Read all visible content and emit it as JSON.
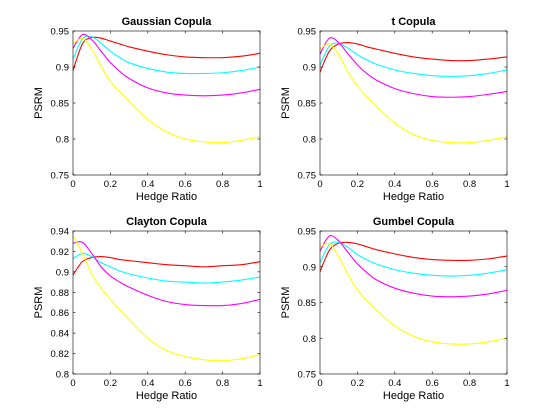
{
  "chart_data": [
    {
      "type": "line",
      "title": "Gaussian Copula",
      "xlabel": "Hedge Ratio",
      "ylabel": "PSRM",
      "xlim": [
        0,
        1
      ],
      "ylim": [
        0.75,
        0.95
      ],
      "xticks": [
        0,
        0.2,
        0.4,
        0.6,
        0.8,
        1
      ],
      "xticklabels": [
        "0",
        "0.2",
        "0.4",
        "0.6",
        "0.8",
        "1"
      ],
      "yticks": [
        0.75,
        0.8,
        0.85,
        0.9,
        0.95
      ],
      "yticklabels": [
        "0.75",
        "0.8",
        "0.85",
        "0.9",
        "0.95"
      ],
      "grid": false,
      "x": [
        0,
        0.05,
        0.1,
        0.15,
        0.2,
        0.25,
        0.3,
        0.4,
        0.5,
        0.6,
        0.7,
        0.8,
        0.9,
        1.0
      ],
      "series": [
        {
          "color": "#ff0000",
          "values": [
            0.895,
            0.932,
            0.941,
            0.94,
            0.936,
            0.932,
            0.928,
            0.922,
            0.917,
            0.914,
            0.913,
            0.913,
            0.915,
            0.919
          ]
        },
        {
          "color": "#00ffff",
          "values": [
            0.911,
            0.939,
            0.942,
            0.933,
            0.922,
            0.913,
            0.906,
            0.898,
            0.893,
            0.891,
            0.891,
            0.892,
            0.895,
            0.9
          ]
        },
        {
          "color": "#ff00ff",
          "values": [
            0.926,
            0.945,
            0.938,
            0.922,
            0.906,
            0.894,
            0.884,
            0.871,
            0.864,
            0.861,
            0.86,
            0.861,
            0.864,
            0.869
          ]
        },
        {
          "color": "#ffff00",
          "values": [
            0.932,
            0.94,
            0.925,
            0.901,
            0.88,
            0.866,
            0.852,
            0.827,
            0.81,
            0.8,
            0.796,
            0.795,
            0.798,
            0.803
          ]
        }
      ]
    },
    {
      "type": "line",
      "title": "t Copula",
      "xlabel": "Hedge Ratio",
      "ylabel": "PSRM",
      "xlim": [
        0,
        1
      ],
      "ylim": [
        0.75,
        0.95
      ],
      "xticks": [
        0,
        0.2,
        0.4,
        0.6,
        0.8,
        1
      ],
      "xticklabels": [
        "0",
        "0.2",
        "0.4",
        "0.6",
        "0.8",
        "1"
      ],
      "yticks": [
        0.75,
        0.8,
        0.85,
        0.9,
        0.95
      ],
      "yticklabels": [
        "0.75",
        "0.8",
        "0.85",
        "0.9",
        "0.95"
      ],
      "grid": false,
      "x": [
        0,
        0.05,
        0.1,
        0.15,
        0.2,
        0.25,
        0.3,
        0.4,
        0.5,
        0.6,
        0.7,
        0.8,
        0.9,
        1.0
      ],
      "series": [
        {
          "color": "#ff0000",
          "values": [
            0.893,
            0.922,
            0.932,
            0.934,
            0.932,
            0.928,
            0.925,
            0.919,
            0.914,
            0.911,
            0.909,
            0.909,
            0.911,
            0.914
          ]
        },
        {
          "color": "#00ffff",
          "values": [
            0.903,
            0.929,
            0.933,
            0.926,
            0.917,
            0.91,
            0.904,
            0.896,
            0.891,
            0.888,
            0.887,
            0.888,
            0.891,
            0.896
          ]
        },
        {
          "color": "#ff00ff",
          "values": [
            0.918,
            0.94,
            0.934,
            0.918,
            0.903,
            0.891,
            0.882,
            0.87,
            0.863,
            0.859,
            0.858,
            0.859,
            0.862,
            0.866
          ]
        },
        {
          "color": "#ffff00",
          "values": [
            0.925,
            0.932,
            0.917,
            0.893,
            0.874,
            0.859,
            0.846,
            0.822,
            0.806,
            0.798,
            0.795,
            0.795,
            0.798,
            0.803
          ]
        }
      ]
    },
    {
      "type": "line",
      "title": "Clayton Copula",
      "xlabel": "Hedge Ratio",
      "ylabel": "PSRM",
      "xlim": [
        0,
        1
      ],
      "ylim": [
        0.8,
        0.94
      ],
      "xticks": [
        0,
        0.2,
        0.4,
        0.6,
        0.8,
        1
      ],
      "xticklabels": [
        "0",
        "0.2",
        "0.4",
        "0.6",
        "0.8",
        "1"
      ],
      "yticks": [
        0.8,
        0.82,
        0.84,
        0.86,
        0.88,
        0.9,
        0.92,
        0.94
      ],
      "yticklabels": [
        "0.8",
        "0.82",
        "0.84",
        "0.86",
        "0.88",
        "0.9",
        "0.92",
        "0.94"
      ],
      "grid": false,
      "x": [
        0,
        0.05,
        0.1,
        0.15,
        0.2,
        0.25,
        0.3,
        0.4,
        0.5,
        0.6,
        0.7,
        0.8,
        0.9,
        1.0
      ],
      "series": [
        {
          "color": "#ff0000",
          "values": [
            0.897,
            0.91,
            0.914,
            0.915,
            0.914,
            0.912,
            0.911,
            0.909,
            0.907,
            0.906,
            0.905,
            0.906,
            0.907,
            0.91
          ]
        },
        {
          "color": "#00ffff",
          "values": [
            0.913,
            0.918,
            0.915,
            0.909,
            0.905,
            0.901,
            0.898,
            0.894,
            0.891,
            0.89,
            0.889,
            0.89,
            0.892,
            0.895
          ]
        },
        {
          "color": "#ff00ff",
          "values": [
            0.928,
            0.929,
            0.918,
            0.905,
            0.896,
            0.89,
            0.885,
            0.877,
            0.871,
            0.868,
            0.867,
            0.867,
            0.869,
            0.873
          ]
        },
        {
          "color": "#ffff00",
          "values": [
            0.935,
            0.918,
            0.898,
            0.884,
            0.873,
            0.863,
            0.853,
            0.835,
            0.823,
            0.817,
            0.814,
            0.813,
            0.815,
            0.819
          ]
        }
      ]
    },
    {
      "type": "line",
      "title": "Gumbel Copula",
      "xlabel": "Hedge Ratio",
      "ylabel": "PSRM",
      "xlim": [
        0,
        1
      ],
      "ylim": [
        0.75,
        0.95
      ],
      "xticks": [
        0,
        0.2,
        0.4,
        0.6,
        0.8,
        1
      ],
      "xticklabels": [
        "0",
        "0.2",
        "0.4",
        "0.6",
        "0.8",
        "1"
      ],
      "yticks": [
        0.75,
        0.8,
        0.85,
        0.9,
        0.95
      ],
      "yticklabels": [
        "0.75",
        "0.8",
        "0.85",
        "0.9",
        "0.95"
      ],
      "grid": false,
      "x": [
        0,
        0.05,
        0.1,
        0.15,
        0.2,
        0.25,
        0.3,
        0.4,
        0.5,
        0.6,
        0.7,
        0.8,
        0.9,
        1.0
      ],
      "series": [
        {
          "color": "#ff0000",
          "values": [
            0.893,
            0.923,
            0.933,
            0.934,
            0.932,
            0.928,
            0.924,
            0.918,
            0.913,
            0.91,
            0.909,
            0.909,
            0.911,
            0.915
          ]
        },
        {
          "color": "#00ffff",
          "values": [
            0.906,
            0.931,
            0.934,
            0.927,
            0.917,
            0.91,
            0.904,
            0.896,
            0.891,
            0.888,
            0.887,
            0.888,
            0.891,
            0.896
          ]
        },
        {
          "color": "#ff00ff",
          "values": [
            0.922,
            0.943,
            0.936,
            0.92,
            0.904,
            0.892,
            0.882,
            0.87,
            0.863,
            0.859,
            0.858,
            0.859,
            0.862,
            0.867
          ]
        },
        {
          "color": "#ffff00",
          "values": [
            0.928,
            0.932,
            0.914,
            0.889,
            0.868,
            0.853,
            0.84,
            0.817,
            0.803,
            0.795,
            0.792,
            0.792,
            0.795,
            0.8
          ]
        }
      ]
    }
  ]
}
